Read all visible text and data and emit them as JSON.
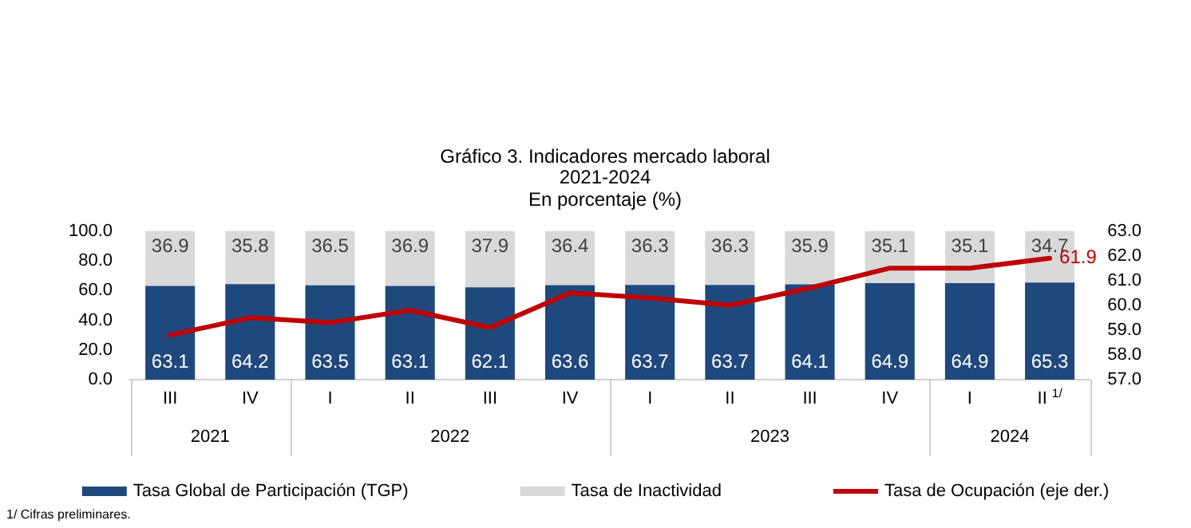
{
  "chart_data": {
    "type": "bar",
    "stacked": true,
    "title": "Gráfico 3. Indicadores mercado laboral\n2021-2024",
    "subtitle": "En porcentaje (%)",
    "categories": [
      "III",
      "IV",
      "I",
      "II",
      "III",
      "IV",
      "I",
      "II",
      "III",
      "IV",
      "I",
      "II $^{1/}$"
    ],
    "series": [
      {
        "name": "Tasa Global de Participación (TGP)",
        "color": "#1f497d",
        "values": [
          63.1,
          64.2,
          63.5,
          63.1,
          62.1,
          63.6,
          63.7,
          63.7,
          64.1,
          64.9,
          64.9,
          65.3
        ],
        "value_labels": [
          "63.1",
          "64.2",
          "63.5",
          "63.1",
          "62.1",
          "63.6",
          "63.7",
          "63.7",
          "64.1",
          "64.9",
          "64.9",
          "65.3"
        ]
      },
      {
        "name": "Tasa de Inactividad",
        "color": "#d9d9d9",
        "values": [
          36.9,
          35.8,
          36.5,
          36.9,
          37.9,
          36.4,
          36.3,
          36.3,
          35.9,
          35.1,
          35.1,
          34.7
        ],
        "value_labels": [
          "36.9",
          "35.8",
          "36.5",
          "36.9",
          "37.9",
          "36.4",
          "36.3",
          "36.3",
          "35.9",
          "35.1",
          "35.1",
          "34.7"
        ]
      },
      {
        "name": "Tasa de Ocupación (eje der.)",
        "type": "line",
        "axis": "y2",
        "color": "#c00000",
        "values": [
          58.8,
          59.5,
          59.3,
          59.8,
          59.1,
          60.5,
          60.3,
          60.0,
          60.7,
          61.5,
          61.5,
          61.9
        ],
        "value_labels": [
          null,
          null,
          null,
          null,
          null,
          null,
          null,
          null,
          null,
          null,
          null,
          "61.9"
        ]
      }
    ],
    "ylim": [
      0,
      100
    ],
    "yticks": [
      {
        "value": 0,
        "label": "0.0"
      },
      {
        "value": 20,
        "label": "20.0"
      },
      {
        "value": 40,
        "label": "40.0"
      },
      {
        "value": 60,
        "label": "60.0"
      },
      {
        "value": 80,
        "label": "80.0"
      },
      {
        "value": 100,
        "label": "100.0"
      }
    ],
    "y2lim": [
      57,
      63
    ],
    "y2ticks": [
      {
        "value": 57,
        "label": "57.0"
      },
      {
        "value": 58,
        "label": "58.0"
      },
      {
        "value": 59,
        "label": "59.0"
      },
      {
        "value": 60,
        "label": "60.0"
      },
      {
        "value": 61,
        "label": "61.0"
      },
      {
        "value": 62,
        "label": "62.0"
      },
      {
        "value": 63,
        "label": "63.0"
      }
    ],
    "grid": false,
    "legend": "bottom",
    "marker": "none",
    "line_style": "solid",
    "annotations": [
      "2021",
      "2022",
      "2023",
      "2024",
      "1/ Cifras preliminares."
    ]
  }
}
